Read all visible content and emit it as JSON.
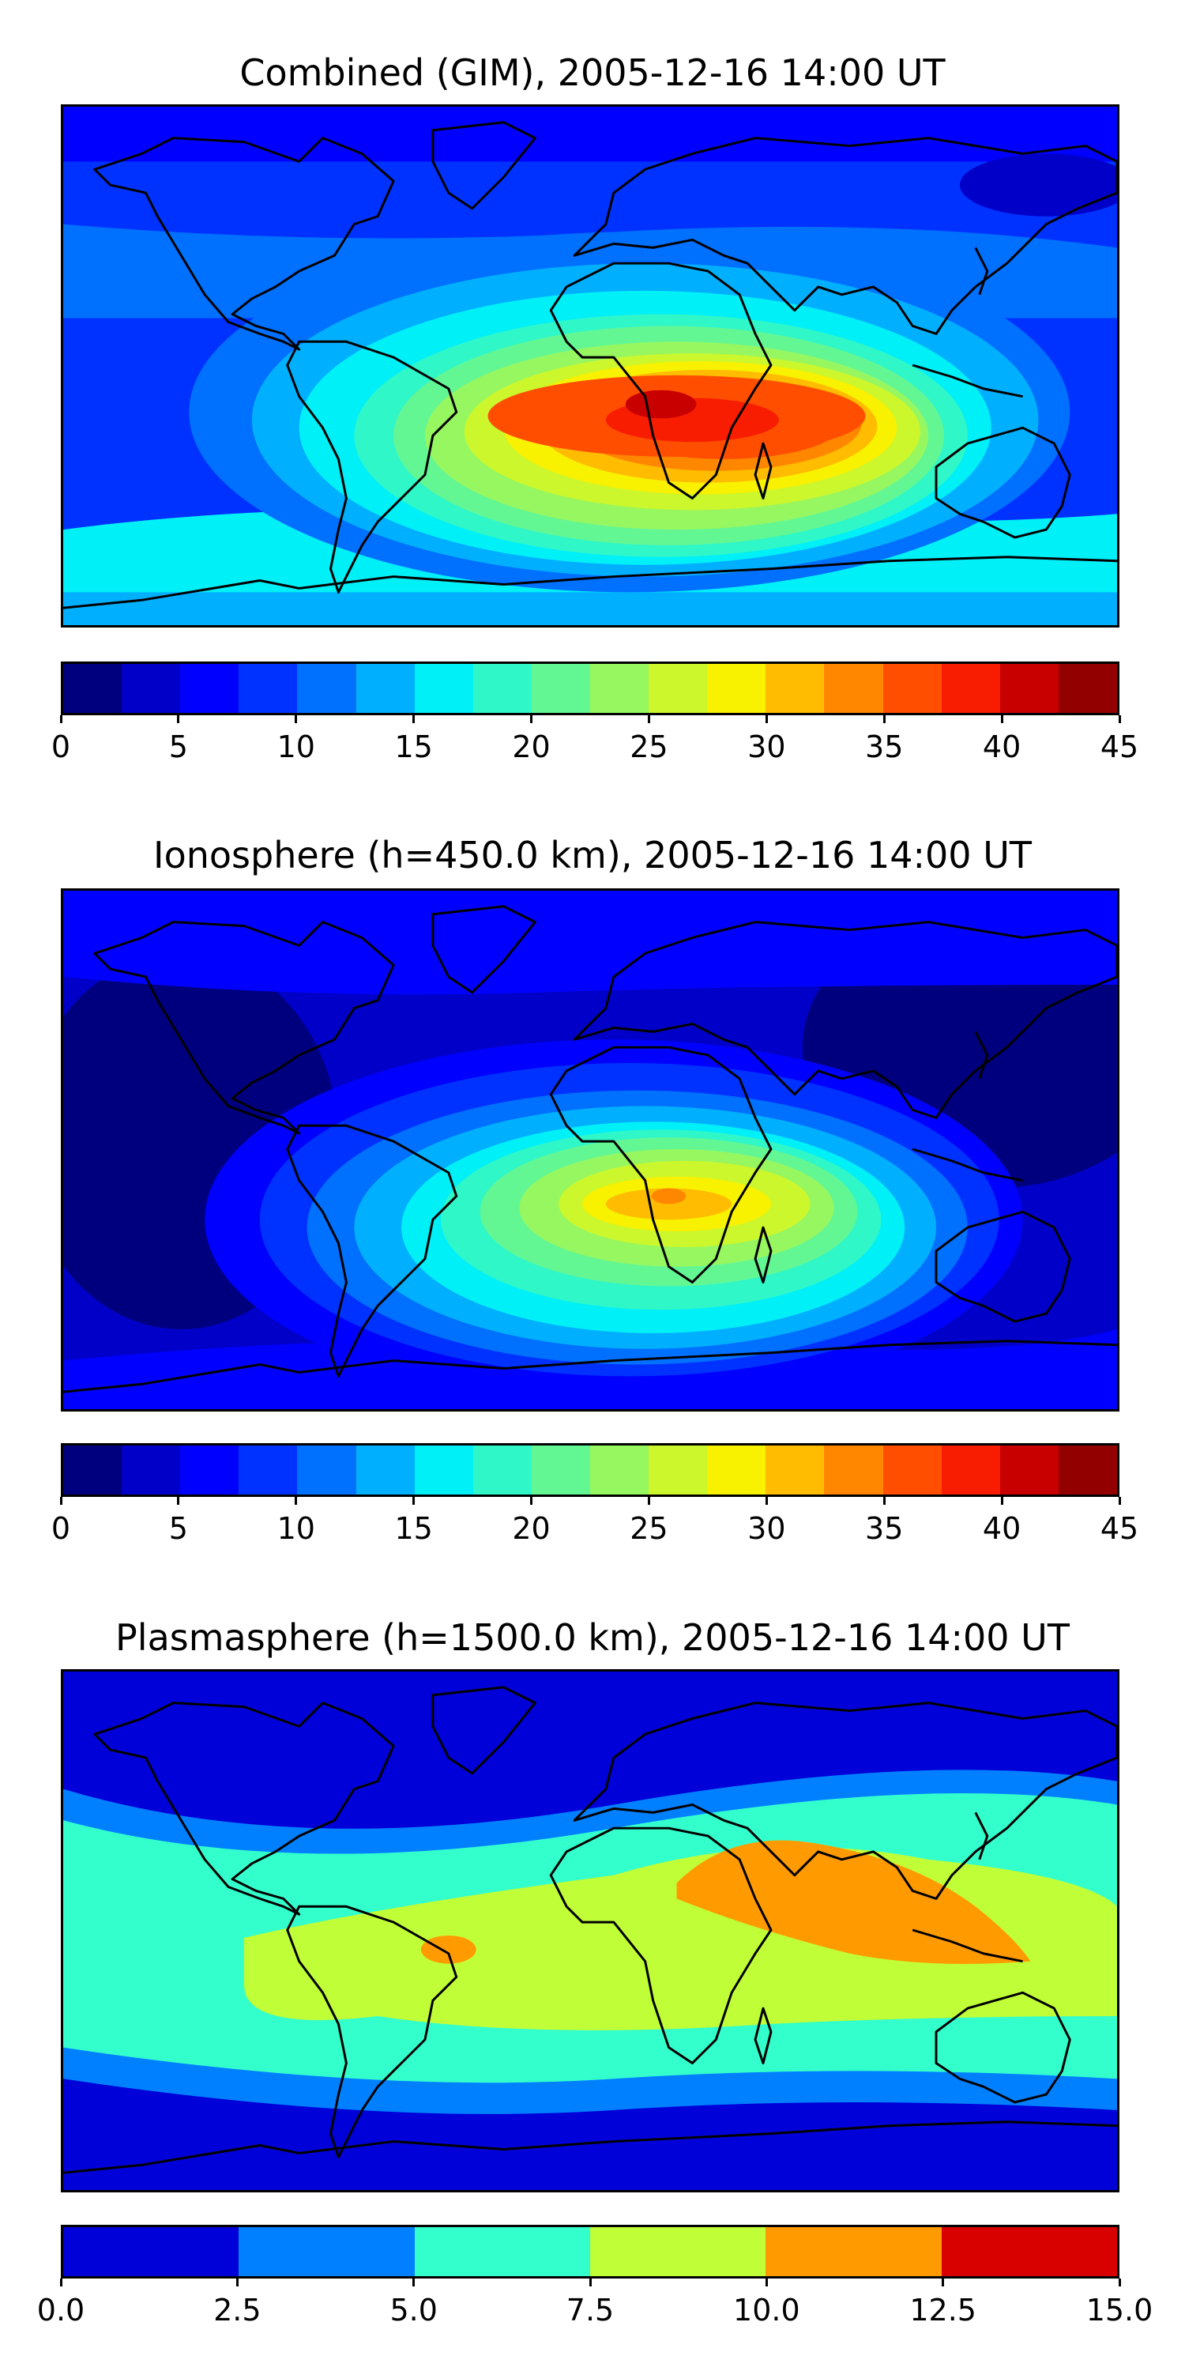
{
  "panels": [
    {
      "title": "Combined (GIM), 2005-12-16 14:00 UT",
      "colorbar": {
        "min": 0,
        "max": 45,
        "ticks": [
          "0",
          "5",
          "10",
          "15",
          "20",
          "25",
          "30",
          "35",
          "40",
          "45"
        ],
        "colors": [
          "#00007f",
          "#0000c9",
          "#0000ff",
          "#0032ff",
          "#0070ff",
          "#00b0ff",
          "#00f0f8",
          "#2ff7c8",
          "#63f794",
          "#97f760",
          "#cbf72c",
          "#f8f100",
          "#ffbc00",
          "#ff8700",
          "#ff4e00",
          "#f81d00",
          "#c90000",
          "#930000"
        ]
      }
    },
    {
      "title": "Ionosphere  (h=450.0 km), 2005-12-16 14:00 UT",
      "colorbar": {
        "min": 0,
        "max": 45,
        "ticks": [
          "0",
          "5",
          "10",
          "15",
          "20",
          "25",
          "30",
          "35",
          "40",
          "45"
        ],
        "colors": [
          "#00007f",
          "#0000c9",
          "#0000ff",
          "#0032ff",
          "#0070ff",
          "#00b0ff",
          "#00f0f8",
          "#2ff7c8",
          "#63f794",
          "#97f760",
          "#cbf72c",
          "#f8f100",
          "#ffbc00",
          "#ff8700",
          "#ff4e00",
          "#f81d00",
          "#c90000",
          "#930000"
        ]
      }
    },
    {
      "title": "Plasmasphere (h=1500.0 km), 2005-12-16 14:00 UT",
      "colorbar": {
        "min": 0,
        "max": 15,
        "ticks": [
          "0.0",
          "2.5",
          "5.0",
          "7.5",
          "10.0",
          "12.5",
          "15.0"
        ],
        "colors": [
          "#0000d9",
          "#0080ff",
          "#33ffcc",
          "#c0ff37",
          "#ff9a00",
          "#d90000"
        ]
      }
    }
  ]
}
